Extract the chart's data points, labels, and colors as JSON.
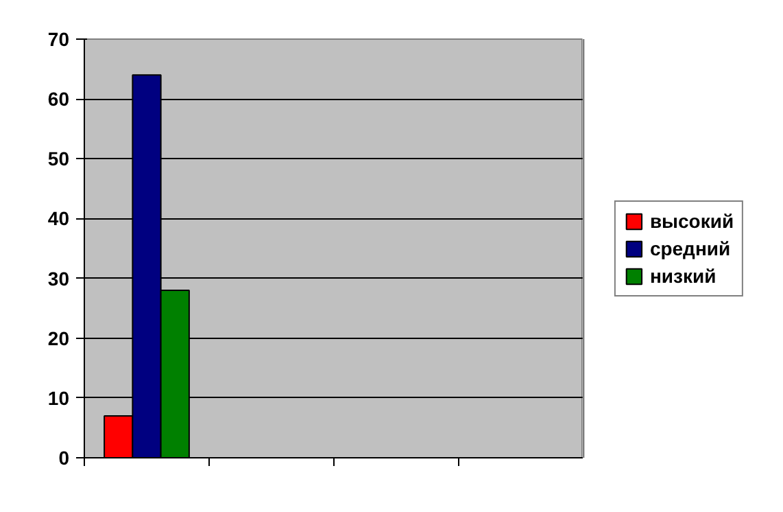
{
  "chart_data": {
    "type": "bar",
    "categories": [
      null,
      null,
      null,
      null
    ],
    "series": [
      {
        "name": "высокий",
        "color": "#ff0000",
        "values": [
          7,
          null,
          null,
          null
        ]
      },
      {
        "name": "средний",
        "color": "#000080",
        "values": [
          64,
          null,
          null,
          null
        ]
      },
      {
        "name": "низкий",
        "color": "#008000",
        "values": [
          28,
          null,
          null,
          null
        ]
      }
    ],
    "ylim": [
      0,
      70
    ],
    "yticks": [
      0,
      10,
      20,
      30,
      40,
      50,
      60,
      70
    ],
    "grid": "y",
    "legend": "right"
  }
}
